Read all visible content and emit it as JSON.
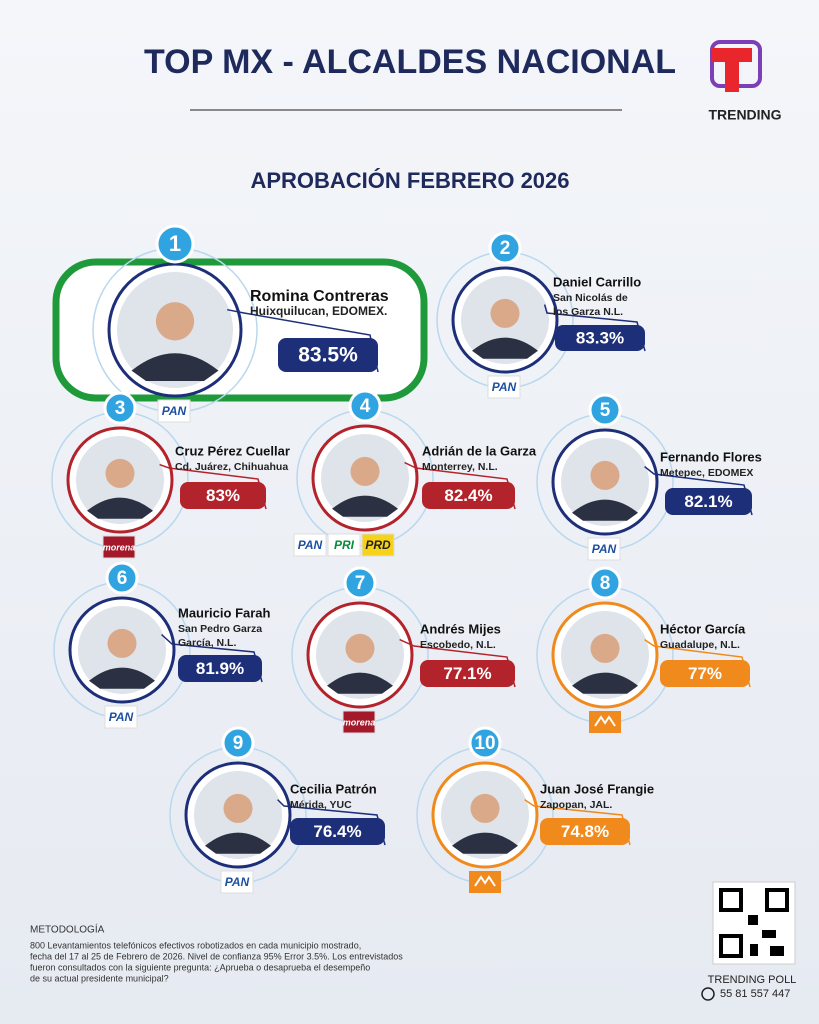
{
  "header": {
    "title": "TOP MX - ALCALDES NACIONAL",
    "subtitle": "APROBACIÓN FEBRERO 2026",
    "logo": "TRENDING"
  },
  "entries": [
    {
      "rank": 1,
      "name": "Romina Contreras",
      "location": [
        "Huixquilucan, EDOMEX."
      ],
      "approval": "83.5%",
      "parties": [
        "PAN"
      ]
    },
    {
      "rank": 2,
      "name": "Daniel Carrillo",
      "location": [
        "San Nicolás de",
        "los Garza N.L."
      ],
      "approval": "83.3%",
      "parties": [
        "PAN"
      ]
    },
    {
      "rank": 3,
      "name": "Cruz Pérez Cuellar",
      "location": [
        "Cd. Juárez, Chihuahua"
      ],
      "approval": "83%",
      "parties": [
        "morena"
      ]
    },
    {
      "rank": 4,
      "name": "Adrián de la Garza",
      "location": [
        "Monterrey, N.L."
      ],
      "approval": "82.4%",
      "parties": [
        "PAN",
        "PRI",
        "PRD"
      ]
    },
    {
      "rank": 5,
      "name": "Fernando Flores",
      "location": [
        "Metepec, EDOMEX"
      ],
      "approval": "82.1%",
      "parties": [
        "PAN"
      ]
    },
    {
      "rank": 6,
      "name": "Mauricio Farah",
      "location": [
        "San Pedro Garza",
        "García, N.L."
      ],
      "approval": "81.9%",
      "parties": [
        "PAN"
      ]
    },
    {
      "rank": 7,
      "name": "Andrés Mijes",
      "location": [
        "Escobedo, N.L."
      ],
      "approval": "77.1%",
      "parties": [
        "morena"
      ]
    },
    {
      "rank": 8,
      "name": "Héctor García",
      "location": [
        "Guadalupe, N.L."
      ],
      "approval": "77%",
      "parties": []
    },
    {
      "rank": 9,
      "name": "Cecilia Patrón",
      "location": [
        "Mérida, YUC"
      ],
      "approval": "76.4%",
      "parties": [
        "PAN"
      ]
    },
    {
      "rank": 10,
      "name": "Juan José Frangie",
      "location": [
        "Zapopan, JAL."
      ],
      "approval": "74.8%",
      "parties": []
    }
  ],
  "methodology": {
    "heading": "METODOLOGÍA",
    "lines": [
      "800 Levantamientos telefónicos efectivos robotizados en cada municipio mostrado,",
      "fecha del 17 al 25 de Febrero de 2026. Nivel de confianza 95% Error 3.5%. Los entrevistados",
      "fueron consultados con la siguiente pregunta: ¿Aprueba o desaprueba el desempeño",
      "de su actual presidente municipal?"
    ]
  },
  "footer": {
    "brand": "TRENDING POLL",
    "phone": "55 81 557 447"
  }
}
